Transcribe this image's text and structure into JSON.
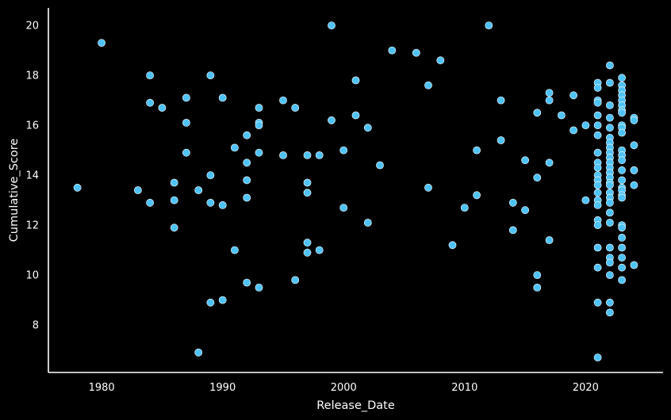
{
  "chart_data": {
    "type": "scatter",
    "xlabel": "Release_Date",
    "ylabel": "Cumulative_Score",
    "xlim": [
      1975.6,
      2026.4
    ],
    "ylim": [
      6.1,
      20.7
    ],
    "xticks": [
      1980,
      1990,
      2000,
      2010,
      2020
    ],
    "yticks": [
      8,
      10,
      12,
      14,
      16,
      18,
      20
    ],
    "grid": false,
    "marker_color": "#4fc3f7",
    "marker_edge_color": "#ffffff",
    "background": "#000000",
    "series": [
      {
        "points": [
          [
            1978,
            13.5
          ],
          [
            1980,
            19.3
          ],
          [
            1983,
            13.4
          ],
          [
            1984,
            18.0
          ],
          [
            1984,
            16.9
          ],
          [
            1984,
            12.9
          ],
          [
            1985,
            16.7
          ],
          [
            1986,
            13.7
          ],
          [
            1986,
            13.0
          ],
          [
            1986,
            11.9
          ],
          [
            1987,
            17.1
          ],
          [
            1987,
            16.1
          ],
          [
            1987,
            14.9
          ],
          [
            1988,
            13.4
          ],
          [
            1988,
            6.9
          ],
          [
            1989,
            18.0
          ],
          [
            1989,
            14.0
          ],
          [
            1989,
            12.9
          ],
          [
            1989,
            8.9
          ],
          [
            1990,
            17.1
          ],
          [
            1990,
            12.8
          ],
          [
            1990,
            9.0
          ],
          [
            1991,
            15.1
          ],
          [
            1991,
            11.0
          ],
          [
            1992,
            15.6
          ],
          [
            1992,
            14.5
          ],
          [
            1992,
            13.8
          ],
          [
            1992,
            13.1
          ],
          [
            1992,
            9.7
          ],
          [
            1993,
            16.7
          ],
          [
            1993,
            16.1
          ],
          [
            1993,
            16.0
          ],
          [
            1993,
            14.9
          ],
          [
            1993,
            9.5
          ],
          [
            1995,
            17.0
          ],
          [
            1995,
            14.8
          ],
          [
            1996,
            16.7
          ],
          [
            1996,
            9.8
          ],
          [
            1997,
            14.8
          ],
          [
            1997,
            13.7
          ],
          [
            1997,
            13.3
          ],
          [
            1997,
            11.3
          ],
          [
            1997,
            10.9
          ],
          [
            1998,
            14.8
          ],
          [
            1998,
            11.0
          ],
          [
            1999,
            20.0
          ],
          [
            1999,
            16.2
          ],
          [
            2000,
            15.0
          ],
          [
            2000,
            12.7
          ],
          [
            2001,
            17.8
          ],
          [
            2001,
            16.4
          ],
          [
            2002,
            15.9
          ],
          [
            2002,
            12.1
          ],
          [
            2003,
            14.4
          ],
          [
            2004,
            19.0
          ],
          [
            2006,
            18.9
          ],
          [
            2007,
            17.6
          ],
          [
            2007,
            13.5
          ],
          [
            2008,
            18.6
          ],
          [
            2009,
            11.2
          ],
          [
            2010,
            12.7
          ],
          [
            2011,
            15.0
          ],
          [
            2011,
            13.2
          ],
          [
            2012,
            20.0
          ],
          [
            2013,
            17.0
          ],
          [
            2013,
            15.4
          ],
          [
            2014,
            12.9
          ],
          [
            2014,
            11.8
          ],
          [
            2015,
            14.6
          ],
          [
            2015,
            12.6
          ],
          [
            2016,
            16.5
          ],
          [
            2016,
            13.9
          ],
          [
            2016,
            10.0
          ],
          [
            2016,
            9.5
          ],
          [
            2017,
            17.3
          ],
          [
            2017,
            17.0
          ],
          [
            2017,
            14.5
          ],
          [
            2017,
            11.4
          ],
          [
            2018,
            16.4
          ],
          [
            2019,
            17.2
          ],
          [
            2019,
            15.8
          ],
          [
            2020,
            16.0
          ],
          [
            2020,
            13.0
          ],
          [
            2021,
            17.7
          ],
          [
            2021,
            17.5
          ],
          [
            2021,
            17.0
          ],
          [
            2021,
            16.9
          ],
          [
            2021,
            16.4
          ],
          [
            2021,
            16.0
          ],
          [
            2021,
            15.6
          ],
          [
            2021,
            14.9
          ],
          [
            2021,
            14.5
          ],
          [
            2021,
            14.3
          ],
          [
            2021,
            14.0
          ],
          [
            2021,
            13.8
          ],
          [
            2021,
            13.6
          ],
          [
            2021,
            13.3
          ],
          [
            2021,
            13.0
          ],
          [
            2021,
            12.8
          ],
          [
            2021,
            12.2
          ],
          [
            2021,
            12.0
          ],
          [
            2021,
            11.1
          ],
          [
            2021,
            10.3
          ],
          [
            2021,
            8.9
          ],
          [
            2021,
            6.7
          ],
          [
            2022,
            18.4
          ],
          [
            2022,
            17.7
          ],
          [
            2022,
            16.8
          ],
          [
            2022,
            16.3
          ],
          [
            2022,
            15.9
          ],
          [
            2022,
            15.5
          ],
          [
            2022,
            15.3
          ],
          [
            2022,
            15.1
          ],
          [
            2022,
            14.9
          ],
          [
            2022,
            14.7
          ],
          [
            2022,
            14.5
          ],
          [
            2022,
            14.3
          ],
          [
            2022,
            14.1
          ],
          [
            2022,
            13.9
          ],
          [
            2022,
            13.7
          ],
          [
            2022,
            13.6
          ],
          [
            2022,
            13.3
          ],
          [
            2022,
            13.1
          ],
          [
            2022,
            12.9
          ],
          [
            2022,
            12.5
          ],
          [
            2022,
            12.1
          ],
          [
            2022,
            11.1
          ],
          [
            2022,
            10.7
          ],
          [
            2022,
            10.5
          ],
          [
            2022,
            10.0
          ],
          [
            2022,
            8.9
          ],
          [
            2022,
            8.5
          ],
          [
            2023,
            17.9
          ],
          [
            2023,
            17.6
          ],
          [
            2023,
            17.4
          ],
          [
            2023,
            17.2
          ],
          [
            2023,
            17.0
          ],
          [
            2023,
            16.8
          ],
          [
            2023,
            16.6
          ],
          [
            2023,
            16.5
          ],
          [
            2023,
            16.0
          ],
          [
            2023,
            15.9
          ],
          [
            2023,
            15.7
          ],
          [
            2023,
            15.0
          ],
          [
            2023,
            14.8
          ],
          [
            2023,
            14.6
          ],
          [
            2023,
            14.2
          ],
          [
            2023,
            13.8
          ],
          [
            2023,
            13.5
          ],
          [
            2023,
            13.4
          ],
          [
            2023,
            13.2
          ],
          [
            2023,
            13.1
          ],
          [
            2023,
            12.0
          ],
          [
            2023,
            11.9
          ],
          [
            2023,
            11.5
          ],
          [
            2023,
            11.1
          ],
          [
            2023,
            10.7
          ],
          [
            2023,
            10.3
          ],
          [
            2023,
            9.8
          ],
          [
            2024,
            16.3
          ],
          [
            2024,
            16.2
          ],
          [
            2024,
            15.2
          ],
          [
            2024,
            14.2
          ],
          [
            2024,
            14.2
          ],
          [
            2024,
            13.6
          ],
          [
            2024,
            10.4
          ]
        ]
      }
    ]
  }
}
